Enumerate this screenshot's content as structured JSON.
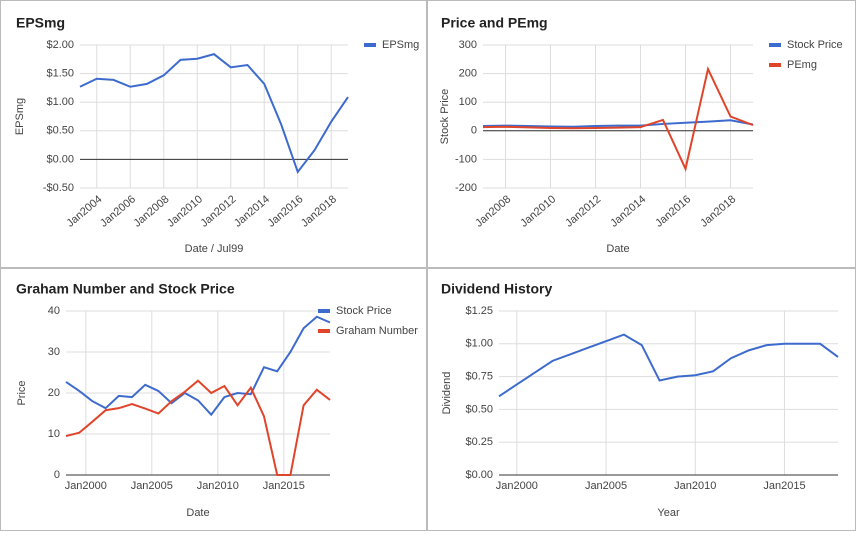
{
  "chart_data": [
    {
      "type": "line",
      "title": "EPSmg",
      "x_label": "Date / Jul99",
      "y_label": "EPSmg",
      "x": [
        2003,
        2004,
        2005,
        2006,
        2007,
        2008,
        2009,
        2010,
        2011,
        2012,
        2013,
        2014,
        2015,
        2016,
        2017,
        2018,
        2019
      ],
      "series": [
        {
          "name": "EPSmg",
          "color": "#3d6bcd",
          "values": [
            1.27,
            1.41,
            1.39,
            1.27,
            1.32,
            1.47,
            1.74,
            1.76,
            1.84,
            1.61,
            1.65,
            1.32,
            0.62,
            -0.22,
            0.16,
            0.66,
            1.09
          ]
        }
      ],
      "xlim": [
        2003,
        2019
      ],
      "xticks": [
        {
          "value": 2004,
          "label": "Jan2004"
        },
        {
          "value": 2006,
          "label": "Jan2006"
        },
        {
          "value": 2008,
          "label": "Jan2008"
        },
        {
          "value": 2010,
          "label": "Jan2010"
        },
        {
          "value": 2012,
          "label": "Jan2012"
        },
        {
          "value": 2014,
          "label": "Jan2014"
        },
        {
          "value": 2016,
          "label": "Jan2016"
        },
        {
          "value": 2018,
          "label": "Jan2018"
        }
      ],
      "ylim": [
        -0.5,
        2.0
      ],
      "yticks": [
        {
          "value": -0.5,
          "label": "-$0.50"
        },
        {
          "value": 0,
          "label": "$0.00"
        },
        {
          "value": 0.5,
          "label": "$0.50"
        },
        {
          "value": 1.0,
          "label": "$1.00"
        },
        {
          "value": 1.5,
          "label": "$1.50"
        },
        {
          "value": 2.0,
          "label": "$2.00"
        }
      ],
      "grid": true,
      "legend": "right"
    },
    {
      "type": "line",
      "title": "Price and PEmg",
      "x_label": "Date",
      "y_label": "Stock Price",
      "x": [
        2007,
        2008,
        2009,
        2010,
        2011,
        2012,
        2013,
        2014,
        2015,
        2016,
        2017,
        2018,
        2019
      ],
      "series": [
        {
          "name": "Stock Price",
          "color": "#3d6bcd",
          "values": [
            17,
            18,
            17,
            15,
            14,
            17,
            18,
            18,
            24,
            28,
            32,
            37,
            22
          ]
        },
        {
          "name": "PEmg",
          "color": "#e0452a",
          "values": [
            13,
            14,
            12,
            10,
            9,
            10,
            11,
            13,
            38,
            -133,
            216,
            50,
            20
          ]
        }
      ],
      "xlim": [
        2007,
        2019
      ],
      "xticks": [
        {
          "value": 2008,
          "label": "Jan2008"
        },
        {
          "value": 2010,
          "label": "Jan2010"
        },
        {
          "value": 2012,
          "label": "Jan2012"
        },
        {
          "value": 2014,
          "label": "Jan2014"
        },
        {
          "value": 2016,
          "label": "Jan2016"
        },
        {
          "value": 2018,
          "label": "Jan2018"
        }
      ],
      "ylim": [
        -200,
        300
      ],
      "yticks": [
        -200,
        -100,
        0,
        100,
        200,
        300
      ],
      "grid": true,
      "legend": "right"
    },
    {
      "type": "line",
      "title": "Graham Number and Stock Price",
      "x_label": "Date",
      "y_label": "Price",
      "x": [
        1998.5,
        1999.5,
        2000.5,
        2001.5,
        2002.5,
        2003.5,
        2004.5,
        2005.5,
        2006.5,
        2007.5,
        2008.5,
        2009.5,
        2010.5,
        2011.5,
        2012.5,
        2013.5,
        2014.5,
        2015.5,
        2016.5,
        2017.5,
        2018.5
      ],
      "series": [
        {
          "name": "Stock Price",
          "color": "#3d6bcd",
          "values": [
            22.7,
            20.5,
            18,
            16.3,
            19.3,
            19,
            22,
            20.5,
            17.5,
            20,
            18.2,
            14.7,
            19,
            20,
            19.7,
            26.3,
            25.3,
            30,
            35.8,
            38.6,
            37.2
          ]
        },
        {
          "name": "Graham Number",
          "color": "#e0452a",
          "values": [
            9.5,
            10.3,
            13,
            15.8,
            16.3,
            17.3,
            16.2,
            15,
            18,
            20.3,
            23,
            20,
            21.7,
            17,
            21.3,
            14.3,
            0,
            0,
            17,
            20.8,
            18.3
          ]
        }
      ],
      "xlim": [
        1998.5,
        2018.5
      ],
      "xticks": [
        {
          "value": 2000,
          "label": "Jan2000"
        },
        {
          "value": 2005,
          "label": "Jan2005"
        },
        {
          "value": 2010,
          "label": "Jan2010"
        },
        {
          "value": 2015,
          "label": "Jan2015"
        }
      ],
      "ylim": [
        0,
        40
      ],
      "yticks": [
        0,
        10,
        20,
        30,
        40
      ],
      "grid": true,
      "legend": "right"
    },
    {
      "type": "line",
      "title": "Dividend History",
      "x_label": "Year",
      "y_label": "Dividend",
      "x": [
        1999,
        2000,
        2001,
        2002,
        2003,
        2004,
        2005,
        2006,
        2007,
        2008,
        2009,
        2010,
        2011,
        2012,
        2013,
        2014,
        2015,
        2016,
        2017,
        2018
      ],
      "values": [
        0.6,
        0.69,
        0.78,
        0.87,
        0.92,
        0.97,
        1.02,
        1.07,
        0.99,
        0.72,
        0.75,
        0.76,
        0.79,
        0.89,
        0.95,
        0.99,
        1.0,
        1.0,
        1.0,
        0.9
      ],
      "color": "#3d6bcd",
      "xlim": [
        1999,
        2018
      ],
      "xticks": [
        {
          "value": 2000,
          "label": "Jan2000"
        },
        {
          "value": 2005,
          "label": "Jan2005"
        },
        {
          "value": 2010,
          "label": "Jan2010"
        },
        {
          "value": 2015,
          "label": "Jan2015"
        }
      ],
      "ylim": [
        0,
        1.25
      ],
      "yticks": [
        {
          "value": 0,
          "label": "$0.00"
        },
        {
          "value": 0.25,
          "label": "$0.25"
        },
        {
          "value": 0.5,
          "label": "$0.50"
        },
        {
          "value": 0.75,
          "label": "$0.75"
        },
        {
          "value": 1.0,
          "label": "$1.00"
        },
        {
          "value": 1.25,
          "label": "$1.25"
        }
      ],
      "grid": true
    }
  ]
}
